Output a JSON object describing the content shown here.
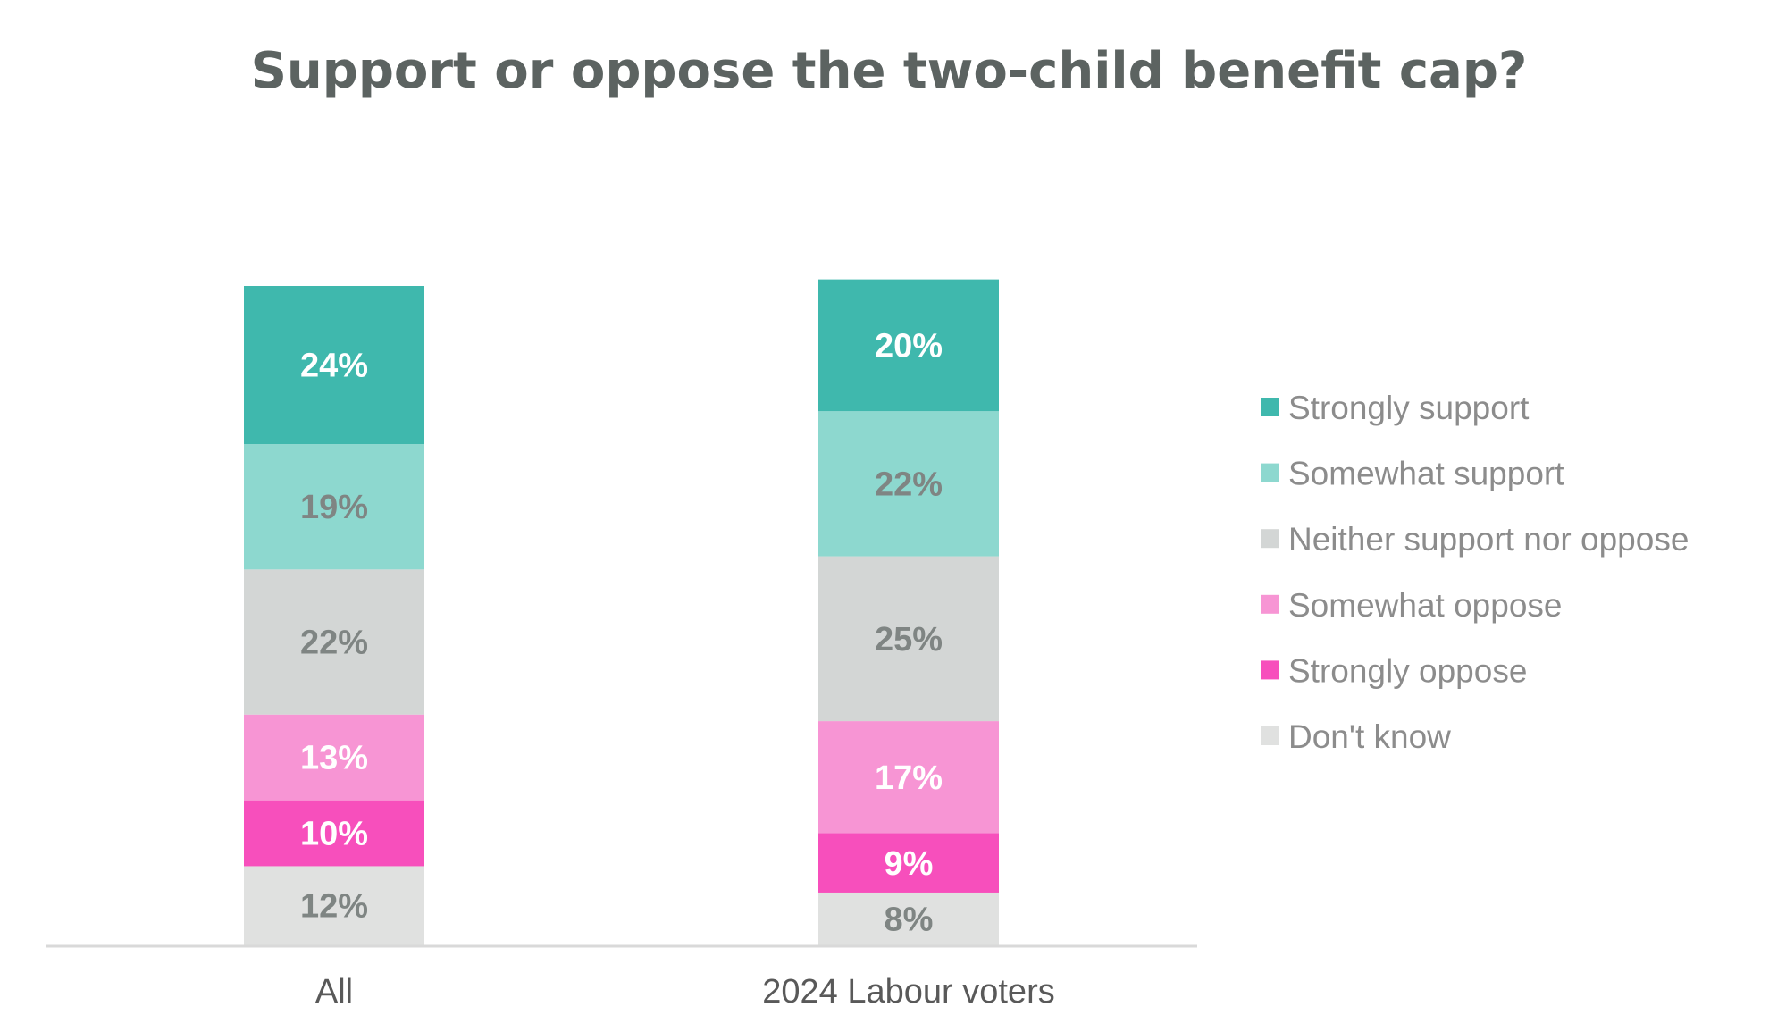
{
  "chart_data": {
    "type": "bar",
    "stacked": true,
    "title": "Support or oppose the two-child benefit cap?",
    "categories": [
      "All",
      "2024 Labour voters"
    ],
    "series": [
      {
        "name": "Strongly support",
        "color": "#3fb8ad",
        "label_color": "#ffffff",
        "values": [
          24,
          20
        ],
        "labels": [
          "24%",
          "20%"
        ]
      },
      {
        "name": "Somewhat support",
        "color": "#8dd8cf",
        "label_color": "#7f8583",
        "values": [
          19,
          22
        ],
        "labels": [
          "19%",
          "22%"
        ]
      },
      {
        "name": "Neither support nor oppose",
        "color": "#d3d6d5",
        "label_color": "#7f8583",
        "values": [
          22,
          25
        ],
        "labels": [
          "22%",
          "25%"
        ]
      },
      {
        "name": "Somewhat oppose",
        "color": "#f795d4",
        "label_color": "#ffffff",
        "values": [
          13,
          17
        ],
        "labels": [
          "13%",
          "17%"
        ]
      },
      {
        "name": "Strongly oppose",
        "color": "#f74fbc",
        "label_color": "#ffffff",
        "values": [
          10,
          9
        ],
        "labels": [
          "10%",
          "9%"
        ]
      },
      {
        "name": "Don't know",
        "color": "#e0e1e0",
        "label_color": "#7f8583",
        "values": [
          12,
          8
        ],
        "labels": [
          "12%",
          "8%"
        ]
      }
    ],
    "xlabel": "",
    "ylabel": "",
    "ylim": [
      0,
      100
    ],
    "grid": false,
    "legend_position": "right"
  }
}
